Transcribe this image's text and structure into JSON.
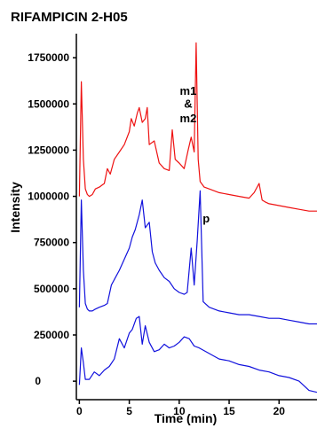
{
  "chart_data": {
    "type": "line",
    "title": "RIFAMPICIN 2-H05",
    "xlabel": "Time (min)",
    "ylabel": "Intensity",
    "xlim": [
      -0.3,
      23.8
    ],
    "ylim": [
      -100000,
      1880000
    ],
    "xticks": [
      0,
      5,
      10,
      15,
      20
    ],
    "yticks": [
      0,
      250000,
      500000,
      750000,
      1000000,
      1250000,
      1500000,
      1750000
    ],
    "xtick_labels": [
      "0",
      "5",
      "10",
      "15",
      "20"
    ],
    "ytick_labels": [
      "0",
      "250000",
      "500000",
      "750000",
      "1000000",
      "1250000",
      "1500000",
      "1750000"
    ],
    "grid": false,
    "annotations": [
      {
        "text": "m1",
        "x": 10.9,
        "y": 1550000
      },
      {
        "text": "&",
        "x": 10.9,
        "y": 1480000
      },
      {
        "text": "m2",
        "x": 10.9,
        "y": 1400000
      },
      {
        "text": "p",
        "x": 12.7,
        "y": 860000
      }
    ],
    "series": [
      {
        "color": "#ee1111",
        "x": [
          0,
          0.2,
          0.4,
          0.6,
          0.8,
          1.0,
          1.3,
          1.6,
          2,
          2.5,
          2.8,
          3.1,
          3.5,
          4,
          4.5,
          5,
          5.2,
          5.5,
          5.8,
          6,
          6.3,
          6.6,
          6.8,
          7,
          7.5,
          8,
          8.5,
          9,
          9.3,
          9.6,
          10,
          10.5,
          10.9,
          11.2,
          11.5,
          11.7,
          11.9,
          12.1,
          12.5,
          13,
          14,
          15,
          16,
          17,
          17.5,
          18,
          18.3,
          18.6,
          19,
          20,
          21,
          22,
          23,
          23.8
        ],
        "y": [
          1000000,
          1620000,
          1200000,
          1040000,
          1010000,
          1000000,
          1010000,
          1040000,
          1050000,
          1070000,
          1150000,
          1120000,
          1200000,
          1240000,
          1280000,
          1350000,
          1420000,
          1380000,
          1450000,
          1480000,
          1400000,
          1420000,
          1480000,
          1280000,
          1300000,
          1180000,
          1150000,
          1140000,
          1360000,
          1200000,
          1180000,
          1150000,
          1250000,
          1320000,
          1240000,
          1830000,
          1200000,
          1080000,
          1050000,
          1040000,
          1020000,
          1010000,
          1000000,
          990000,
          1020000,
          1070000,
          980000,
          970000,
          960000,
          950000,
          940000,
          930000,
          920000,
          920000
        ]
      },
      {
        "color": "#1111dd",
        "x": [
          0,
          0.2,
          0.4,
          0.6,
          0.8,
          1.0,
          1.3,
          1.6,
          2,
          2.5,
          2.8,
          3.2,
          3.6,
          4,
          4.5,
          5,
          5.3,
          5.6,
          6,
          6.3,
          6.6,
          7,
          7.3,
          7.6,
          8,
          8.5,
          9,
          9.5,
          10,
          10.5,
          10.8,
          11.2,
          11.5,
          11.8,
          12.1,
          12.4,
          13,
          14,
          15,
          16,
          17,
          18,
          19,
          20,
          21,
          22,
          23,
          23.8
        ],
        "y": [
          400000,
          980000,
          600000,
          420000,
          390000,
          380000,
          380000,
          390000,
          400000,
          410000,
          420000,
          520000,
          560000,
          600000,
          660000,
          720000,
          780000,
          820000,
          900000,
          980000,
          830000,
          860000,
          700000,
          640000,
          600000,
          560000,
          540000,
          500000,
          480000,
          470000,
          480000,
          720000,
          520000,
          760000,
          1030000,
          430000,
          400000,
          380000,
          370000,
          360000,
          360000,
          350000,
          340000,
          340000,
          330000,
          320000,
          310000,
          310000
        ]
      },
      {
        "color": "#1111dd",
        "x": [
          0,
          0.2,
          0.4,
          0.6,
          1,
          1.5,
          2,
          2.5,
          3,
          3.5,
          4,
          4.5,
          5,
          5.3,
          5.7,
          6,
          6.3,
          6.6,
          7,
          7.5,
          8,
          8.5,
          9,
          9.5,
          10,
          10.5,
          11,
          11.5,
          12,
          13,
          14,
          15,
          16,
          17,
          18,
          19,
          20,
          21,
          22,
          23,
          23.8
        ],
        "y": [
          -20000,
          180000,
          100000,
          10000,
          10000,
          50000,
          30000,
          60000,
          80000,
          120000,
          230000,
          180000,
          260000,
          280000,
          340000,
          350000,
          200000,
          300000,
          210000,
          160000,
          170000,
          200000,
          180000,
          190000,
          210000,
          240000,
          230000,
          190000,
          180000,
          150000,
          120000,
          110000,
          90000,
          80000,
          60000,
          50000,
          30000,
          20000,
          0,
          -50000,
          -60000
        ]
      }
    ]
  }
}
